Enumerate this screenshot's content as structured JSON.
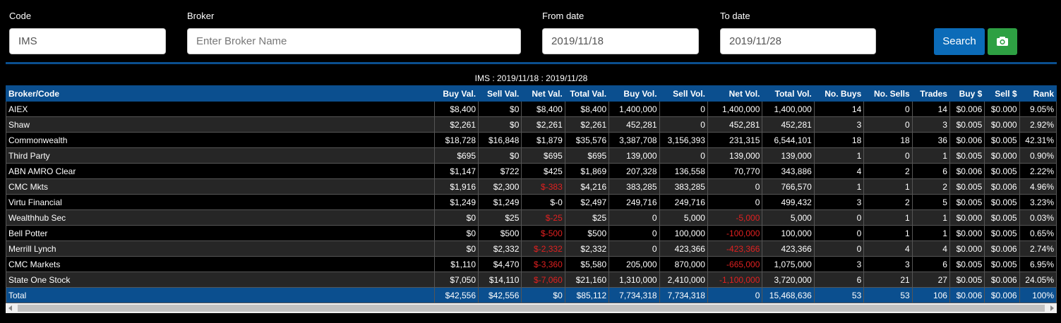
{
  "form": {
    "code": {
      "label": "Code",
      "value": "IMS"
    },
    "broker": {
      "label": "Broker",
      "placeholder": "Enter Broker Name"
    },
    "from_date": {
      "label": "From date",
      "value": "2019/11/18"
    },
    "to_date": {
      "label": "To date",
      "value": "2019/11/28"
    },
    "search_label": "Search",
    "camera_icon": "camera-icon"
  },
  "table": {
    "title": "IMS : 2019/11/18 : 2019/11/28",
    "headers": [
      "Broker/Code",
      "Buy Val.",
      "Sell Val.",
      "Net Val.",
      "Total Val.",
      "Buy Vol.",
      "Sell Vol.",
      "Net Vol.",
      "Total Vol.",
      "No. Buys",
      "No. Sells",
      "Trades",
      "Buy $",
      "Sell $",
      "Rank"
    ],
    "rows": [
      [
        "AIEX",
        "$8,400",
        "$0",
        "$8,400",
        "$8,400",
        "1,400,000",
        "0",
        "1,400,000",
        "1,400,000",
        "14",
        "0",
        "14",
        "$0.006",
        "$0.000",
        "9.05%"
      ],
      [
        "Shaw",
        "$2,261",
        "$0",
        "$2,261",
        "$2,261",
        "452,281",
        "0",
        "452,281",
        "452,281",
        "3",
        "0",
        "3",
        "$0.005",
        "$0.000",
        "2.92%"
      ],
      [
        "Commonwealth",
        "$18,728",
        "$16,848",
        "$1,879",
        "$35,576",
        "3,387,708",
        "3,156,393",
        "231,315",
        "6,544,101",
        "18",
        "18",
        "36",
        "$0.006",
        "$0.005",
        "42.31%"
      ],
      [
        "Third Party",
        "$695",
        "$0",
        "$695",
        "$695",
        "139,000",
        "0",
        "139,000",
        "139,000",
        "1",
        "0",
        "1",
        "$0.005",
        "$0.000",
        "0.90%"
      ],
      [
        "ABN AMRO Clear",
        "$1,147",
        "$722",
        "$425",
        "$1,869",
        "207,328",
        "136,558",
        "70,770",
        "343,886",
        "4",
        "2",
        "6",
        "$0.006",
        "$0.005",
        "2.22%"
      ],
      [
        "CMC Mkts",
        "$1,916",
        "$2,300",
        "$-383",
        "$4,216",
        "383,285",
        "383,285",
        "0",
        "766,570",
        "1",
        "1",
        "2",
        "$0.005",
        "$0.006",
        "4.96%"
      ],
      [
        "Virtu Financial",
        "$1,249",
        "$1,249",
        "$-0",
        "$2,497",
        "249,716",
        "249,716",
        "0",
        "499,432",
        "3",
        "2",
        "5",
        "$0.005",
        "$0.005",
        "3.23%"
      ],
      [
        "Wealthhub Sec",
        "$0",
        "$25",
        "$-25",
        "$25",
        "0",
        "5,000",
        "-5,000",
        "5,000",
        "0",
        "1",
        "1",
        "$0.000",
        "$0.005",
        "0.03%"
      ],
      [
        "Bell Potter",
        "$0",
        "$500",
        "$-500",
        "$500",
        "0",
        "100,000",
        "-100,000",
        "100,000",
        "0",
        "1",
        "1",
        "$0.000",
        "$0.005",
        "0.65%"
      ],
      [
        "Merrill Lynch",
        "$0",
        "$2,332",
        "$-2,332",
        "$2,332",
        "0",
        "423,366",
        "-423,366",
        "423,366",
        "0",
        "4",
        "4",
        "$0.000",
        "$0.006",
        "2.74%"
      ],
      [
        "CMC Markets",
        "$1,110",
        "$4,470",
        "$-3,360",
        "$5,580",
        "205,000",
        "870,000",
        "-665,000",
        "1,075,000",
        "3",
        "3",
        "6",
        "$0.005",
        "$0.005",
        "6.95%"
      ],
      [
        "State One Stock",
        "$7,050",
        "$14,110",
        "$-7,060",
        "$21,160",
        "1,310,000",
        "2,410,000",
        "-1,100,000",
        "3,720,000",
        "6",
        "21",
        "27",
        "$0.005",
        "$0.006",
        "24.05%"
      ]
    ],
    "negative_cells": [
      [
        5,
        3
      ],
      [
        7,
        3
      ],
      [
        7,
        7
      ],
      [
        8,
        3
      ],
      [
        8,
        7
      ],
      [
        9,
        3
      ],
      [
        9,
        7
      ],
      [
        10,
        3
      ],
      [
        10,
        7
      ],
      [
        11,
        3
      ],
      [
        11,
        7
      ]
    ],
    "total": [
      "Total",
      "$42,556",
      "$42,556",
      "$0",
      "$85,112",
      "7,734,318",
      "7,734,318",
      "0",
      "15,468,636",
      "53",
      "53",
      "106",
      "$0.006",
      "$0.006",
      "100%"
    ]
  },
  "colors": {
    "accent": "#0b4f8f",
    "search_button": "#0b6bb8",
    "camera_button": "#2ea043",
    "negative": "#e02020"
  }
}
